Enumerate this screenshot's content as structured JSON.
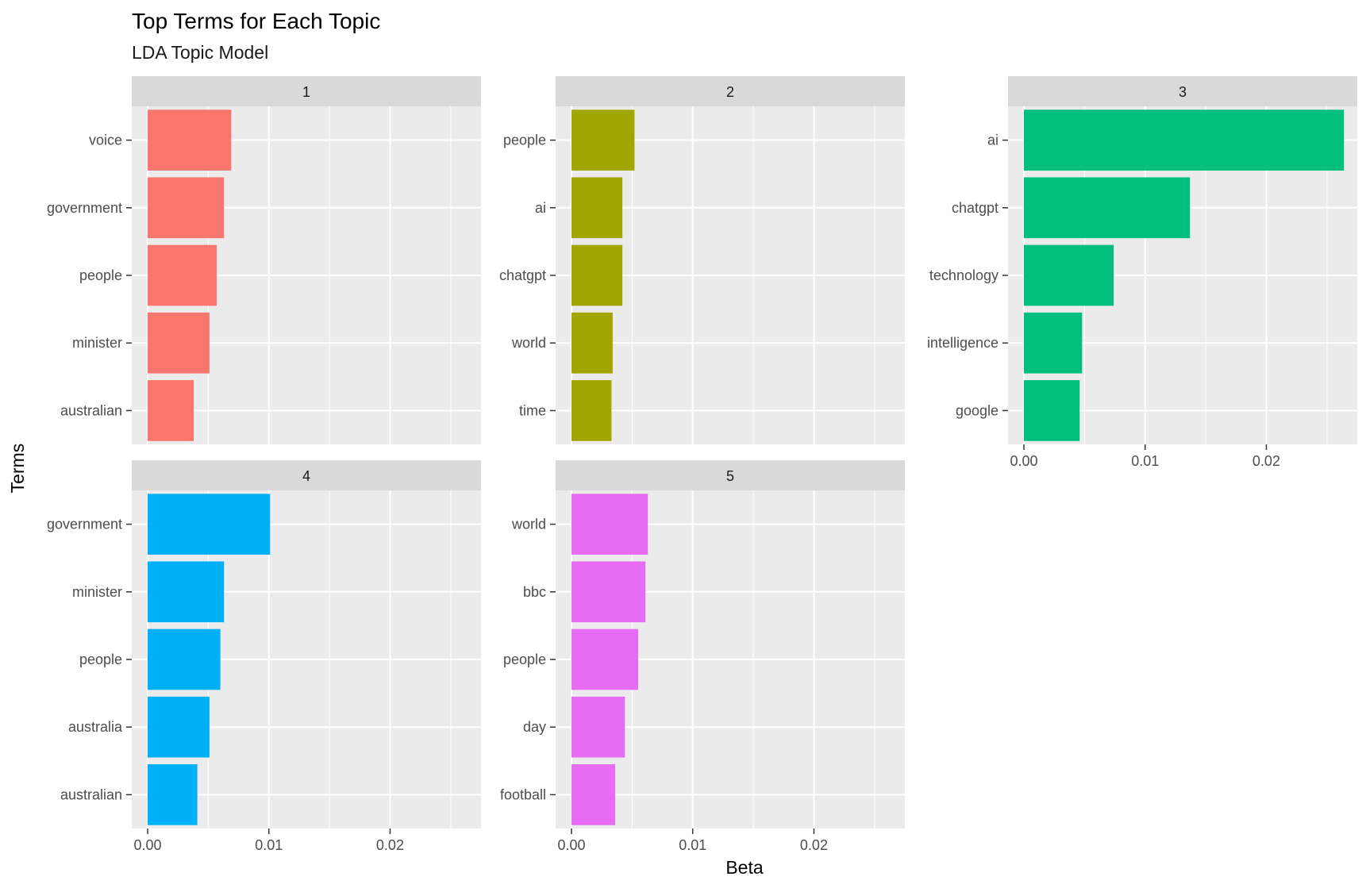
{
  "chart_data": {
    "type": "bar",
    "orientation": "horizontal",
    "title": "Top Terms for Each Topic",
    "subtitle": "LDA Topic Model",
    "xlabel": "Beta",
    "ylabel": "Terms",
    "xlim": [
      0,
      0.0275
    ],
    "xticks": [
      0.0,
      0.01,
      0.02
    ],
    "xtick_labels": [
      "0.00",
      "0.01",
      "0.02"
    ],
    "grid": true,
    "facets": [
      {
        "label": "1",
        "color": "#F8766D",
        "bars": [
          {
            "term": "voice",
            "beta": 0.0069
          },
          {
            "term": "government",
            "beta": 0.0063
          },
          {
            "term": "people",
            "beta": 0.0057
          },
          {
            "term": "minister",
            "beta": 0.0051
          },
          {
            "term": "australian",
            "beta": 0.0038
          }
        ]
      },
      {
        "label": "2",
        "color": "#A3A500",
        "bars": [
          {
            "term": "people",
            "beta": 0.0052
          },
          {
            "term": "ai",
            "beta": 0.0042
          },
          {
            "term": "chatgpt",
            "beta": 0.0042
          },
          {
            "term": "world",
            "beta": 0.0034
          },
          {
            "term": "time",
            "beta": 0.0033
          }
        ]
      },
      {
        "label": "3",
        "color": "#00BF7D",
        "bars": [
          {
            "term": "ai",
            "beta": 0.0264
          },
          {
            "term": "chatgpt",
            "beta": 0.0137
          },
          {
            "term": "technology",
            "beta": 0.0074
          },
          {
            "term": "intelligence",
            "beta": 0.0048
          },
          {
            "term": "google",
            "beta": 0.0046
          }
        ]
      },
      {
        "label": "4",
        "color": "#00B0F6",
        "bars": [
          {
            "term": "government",
            "beta": 0.0101
          },
          {
            "term": "minister",
            "beta": 0.0063
          },
          {
            "term": "people",
            "beta": 0.006
          },
          {
            "term": "australia",
            "beta": 0.0051
          },
          {
            "term": "australian",
            "beta": 0.0041
          }
        ]
      },
      {
        "label": "5",
        "color": "#E76BF3",
        "bars": [
          {
            "term": "world",
            "beta": 0.0063
          },
          {
            "term": "bbc",
            "beta": 0.0061
          },
          {
            "term": "people",
            "beta": 0.0055
          },
          {
            "term": "day",
            "beta": 0.0044
          },
          {
            "term": "football",
            "beta": 0.0036
          }
        ]
      }
    ]
  }
}
